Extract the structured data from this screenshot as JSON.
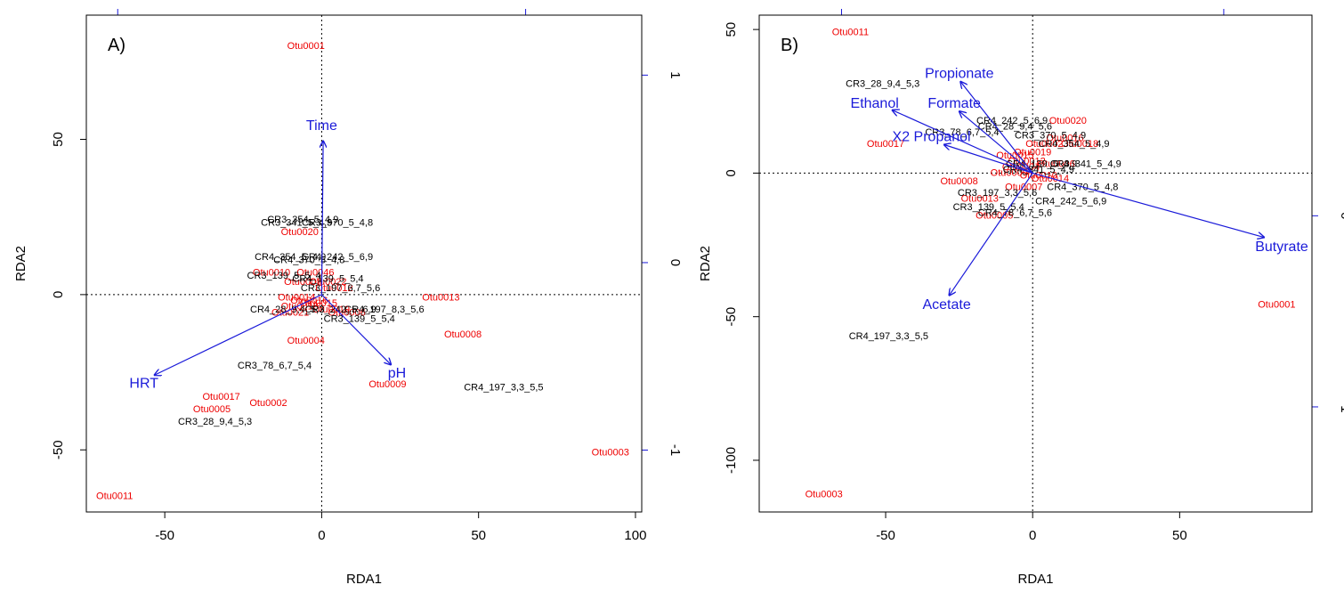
{
  "colors": {
    "site": "#000000",
    "species": "#ee0000",
    "biplot": "#1a1ad9",
    "axis": "#000000"
  },
  "chart_data": [
    {
      "type": "scatter",
      "panel_label": "A)",
      "xlabel": "RDA1",
      "ylabel": "RDA2",
      "xlim": [
        -75,
        102
      ],
      "ylim": [
        -70,
        90
      ],
      "xticks": [
        -50,
        0,
        50,
        100
      ],
      "yticks": [
        -50,
        0,
        50
      ],
      "secondary_axis": {
        "range": [
          -1.33,
          1.32
        ],
        "ticks": [
          -1,
          0,
          1
        ]
      },
      "species": [
        {
          "label": "Otu0001",
          "x": -5,
          "y": 80
        },
        {
          "label": "Otu0020",
          "x": -7,
          "y": 20
        },
        {
          "label": "Otu0013",
          "x": 38,
          "y": -1
        },
        {
          "label": "Otu0008",
          "x": 45,
          "y": -13
        },
        {
          "label": "Otu0004",
          "x": -5,
          "y": -15
        },
        {
          "label": "Otu0009",
          "x": 21,
          "y": -29
        },
        {
          "label": "Otu0017",
          "x": -32,
          "y": -33
        },
        {
          "label": "Otu0002",
          "x": -17,
          "y": -35
        },
        {
          "label": "Otu0005",
          "x": -35,
          "y": -37
        },
        {
          "label": "Otu0003",
          "x": 92,
          "y": -51
        },
        {
          "label": "Otu0011",
          "x": -66,
          "y": -65
        },
        {
          "label": "Otu0010",
          "x": -16,
          "y": 7
        },
        {
          "label": "Otu0046",
          "x": -2,
          "y": 7
        },
        {
          "label": "Otu0007",
          "x": -6,
          "y": 4
        },
        {
          "label": "Otu0012",
          "x": 4,
          "y": 2
        },
        {
          "label": "Otu0014",
          "x": -8,
          "y": -1
        },
        {
          "label": "Otu0016",
          "x": -4,
          "y": -2
        },
        {
          "label": "Otu0018",
          "x": -7,
          "y": -4
        },
        {
          "label": "Otu0019",
          "x": 3,
          "y": -5
        },
        {
          "label": "Otu0021",
          "x": -10,
          "y": -6
        },
        {
          "label": "Otu0006",
          "x": 8,
          "y": -6
        },
        {
          "label": "Otu0015",
          "x": -1,
          "y": -3
        },
        {
          "label": "Otu0022",
          "x": 2,
          "y": 4
        }
      ],
      "sites": [
        {
          "label": "CR3_354_5_4,9",
          "x": -6,
          "y": 24
        },
        {
          "label": "CR3_341_5_4,9",
          "x": -8,
          "y": 23
        },
        {
          "label": "CR3_370_5_4,8",
          "x": 5,
          "y": 23
        },
        {
          "label": "CR4_354_5_4,9",
          "x": -10,
          "y": 12
        },
        {
          "label": "CR4_242_5_6,9",
          "x": 5,
          "y": 12
        },
        {
          "label": "CR4_370_5_4,8",
          "x": -4,
          "y": 11
        },
        {
          "label": "CR3_139_5_5_4",
          "x": -12,
          "y": 6
        },
        {
          "label": "CR4_139_5_5,4",
          "x": 2,
          "y": 5
        },
        {
          "label": "CR3_197_6,7_5,6",
          "x": 6,
          "y": 2
        },
        {
          "label": "CR4_28_9,4_5,3",
          "x": -11,
          "y": -5
        },
        {
          "label": "CR3_242_5_6,9",
          "x": 6,
          "y": -5
        },
        {
          "label": "CR4_197_8,3_5,6",
          "x": 20,
          "y": -5
        },
        {
          "label": "CR3_139_5_5,4",
          "x": 12,
          "y": -8
        },
        {
          "label": "CR3_78_6,7_5,4",
          "x": -15,
          "y": -23
        },
        {
          "label": "CR4_197_3,3_5,5",
          "x": 58,
          "y": -30
        },
        {
          "label": "CR3_28_9,4_5,3",
          "x": -34,
          "y": -41
        }
      ],
      "biplot": [
        {
          "label": "Time",
          "x": 0.01,
          "y": 1.03,
          "lx": 0.0,
          "ly": 1.13
        },
        {
          "label": "HRT",
          "x": -1.11,
          "y": -0.54,
          "lx": -1.18,
          "ly": -0.6
        },
        {
          "label": "pH",
          "x": 0.46,
          "y": -0.47,
          "lx": 0.5,
          "ly": -0.53
        }
      ],
      "biplot_scale": 48
    },
    {
      "type": "scatter",
      "panel_label": "B)",
      "xlabel": "RDA1",
      "ylabel": "RDA2",
      "xlim": [
        -93,
        95
      ],
      "ylim": [
        -118,
        55
      ],
      "xticks": [
        -50,
        0,
        50
      ],
      "yticks": [
        -100,
        -50,
        0,
        50
      ],
      "secondary_axis": {
        "range": [
          -1.55,
          1.05
        ],
        "ticks": [
          -1,
          0
        ]
      },
      "species": [
        {
          "label": "Otu0011",
          "x": -62,
          "y": 49
        },
        {
          "label": "Otu0017",
          "x": -50,
          "y": 10
        },
        {
          "label": "Otu0008",
          "x": -25,
          "y": -3
        },
        {
          "label": "Otu0013",
          "x": -18,
          "y": -9
        },
        {
          "label": "Otu0005",
          "x": -13,
          "y": -15
        },
        {
          "label": "Otu0001",
          "x": 83,
          "y": -46
        },
        {
          "label": "Otu0003",
          "x": -71,
          "y": -112
        },
        {
          "label": "Otu0019",
          "x": 0,
          "y": 7
        },
        {
          "label": "Otu0004",
          "x": -4,
          "y": 2
        },
        {
          "label": "Otu0002",
          "x": 4,
          "y": 10
        },
        {
          "label": "Otu0009",
          "x": -8,
          "y": 0
        },
        {
          "label": "Otu0006",
          "x": 8,
          "y": 3
        },
        {
          "label": "Otu0010",
          "x": 2,
          "y": -1
        },
        {
          "label": "Otu0012",
          "x": -2,
          "y": 4
        },
        {
          "label": "Otu0014",
          "x": 6,
          "y": -2
        },
        {
          "label": "Otu0015",
          "x": -6,
          "y": 6
        },
        {
          "label": "Otu0016",
          "x": 11,
          "y": 12
        },
        {
          "label": "Otu0018",
          "x": 16,
          "y": 10
        },
        {
          "label": "Otu0007",
          "x": -3,
          "y": -5
        },
        {
          "label": "Otu0020",
          "x": 12,
          "y": 18
        }
      ],
      "sites": [
        {
          "label": "CR3_28_9,4_5,3",
          "x": -51,
          "y": 31
        },
        {
          "label": "CR4_242_5_6,9",
          "x": -7,
          "y": 18
        },
        {
          "label": "CR4_28_9,4_5,6",
          "x": -6,
          "y": 16
        },
        {
          "label": "CR3_78_6,7_5,4",
          "x": -24,
          "y": 14
        },
        {
          "label": "CR3_370_5_4,9",
          "x": 6,
          "y": 13
        },
        {
          "label": "CR4_354_5_4,9",
          "x": 14,
          "y": 10
        },
        {
          "label": "CR4_139_5_4,9",
          "x": 3,
          "y": 3
        },
        {
          "label": "CR3_341_5_4,9",
          "x": 18,
          "y": 3
        },
        {
          "label": "CR4_341_5_4,9",
          "x": 2,
          "y": 1
        },
        {
          "label": "CR4_370_5_4,8",
          "x": 17,
          "y": -5
        },
        {
          "label": "CR3_197_3,3_5,6",
          "x": -12,
          "y": -7
        },
        {
          "label": "CR4_242_5_6,9",
          "x": 13,
          "y": -10
        },
        {
          "label": "CR3_139_5_5,4",
          "x": -15,
          "y": -12
        },
        {
          "label": "CR4_78_6,7_5,6",
          "x": -6,
          "y": -14
        },
        {
          "label": "CR4_197_3,3_5,5",
          "x": -49,
          "y": -57
        }
      ],
      "biplot": [
        {
          "label": "Propionate",
          "x": -0.57,
          "y": 0.74,
          "lx": -0.58,
          "ly": 0.8
        },
        {
          "label": "Formate",
          "x": -0.58,
          "y": 0.5,
          "lx": -0.62,
          "ly": 0.56
        },
        {
          "label": "Ethanol",
          "x": -1.11,
          "y": 0.51,
          "lx": -1.25,
          "ly": 0.56
        },
        {
          "label": "X2 Propanol",
          "x": -0.7,
          "y": 0.23,
          "lx": -0.8,
          "ly": 0.29
        },
        {
          "label": "Butyrate",
          "x": 1.83,
          "y": -0.52,
          "lx": 1.97,
          "ly": -0.6
        },
        {
          "label": "Acetate",
          "x": -0.66,
          "y": -0.99,
          "lx": -0.68,
          "ly": -1.07
        }
      ],
      "biplot_scale": 43
    }
  ]
}
